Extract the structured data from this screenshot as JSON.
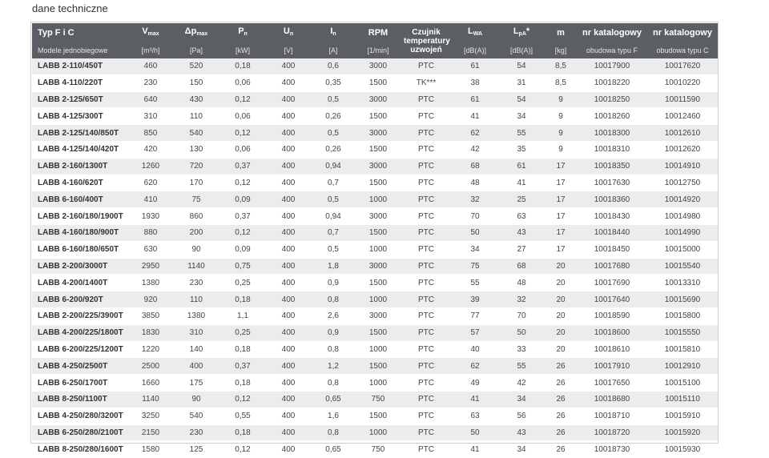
{
  "page": {
    "title": "dane techniczne"
  },
  "table": {
    "headers": {
      "model": "Typ F i C",
      "flow": "V",
      "flow_sub": "max",
      "pressure": "Δp",
      "pressure_sub": "max",
      "power": "P",
      "power_sub": "n",
      "voltage": "U",
      "voltage_sub": "n",
      "current": "I",
      "current_sub": "n",
      "rpm": "RPM",
      "sensor": "Czujnik temperatury uzwojeń",
      "lwa": "L",
      "lwa_sub": "WA",
      "lpa": "L",
      "lpa_sub": "pA",
      "lpa_suffix": "*",
      "mass": "m",
      "cat_f": "nr katalogowy",
      "cat_c": "nr katalogowy"
    },
    "units": {
      "model": "Modele jednobiegowe",
      "flow": "[m³/h]",
      "pressure": "[Pa]",
      "power": "[kW]",
      "voltage": "[V]",
      "current": "[A]",
      "rpm": "[1/min]",
      "sensor": "",
      "lwa": "[dB(A)]",
      "lpa": "[dB(A)]",
      "mass": "[kg]",
      "cat_f": "obudowa typu F",
      "cat_c": "obudowa typu C"
    },
    "rows": [
      [
        "LABB 2-110/450T",
        "460",
        "520",
        "0,18",
        "400",
        "0,6",
        "3000",
        "PTC",
        "61",
        "54",
        "8,5",
        "10017900",
        "10017620"
      ],
      [
        "LABB 4-110/220T",
        "230",
        "150",
        "0,06",
        "400",
        "0,35",
        "1500",
        "TK***",
        "38",
        "31",
        "8,5",
        "10018220",
        "10010220"
      ],
      [
        "LABB 2-125/650T",
        "640",
        "430",
        "0,12",
        "400",
        "0,5",
        "3000",
        "PTC",
        "61",
        "54",
        "9",
        "10018250",
        "10011590"
      ],
      [
        "LABB 4-125/300T",
        "310",
        "110",
        "0,06",
        "400",
        "0,26",
        "1500",
        "PTC",
        "41",
        "34",
        "9",
        "10018260",
        "10012460"
      ],
      [
        "LABB 2-125/140/850T",
        "850",
        "540",
        "0,12",
        "400",
        "0,5",
        "3000",
        "PTC",
        "62",
        "55",
        "9",
        "10018300",
        "10012610"
      ],
      [
        "LABB 4-125/140/420T",
        "420",
        "130",
        "0,06",
        "400",
        "0,26",
        "1500",
        "PTC",
        "42",
        "35",
        "9",
        "10018310",
        "10012620"
      ],
      [
        "LABB 2-160/1300T",
        "1260",
        "720",
        "0,37",
        "400",
        "0,94",
        "3000",
        "PTC",
        "68",
        "61",
        "17",
        "10018350",
        "10014910"
      ],
      [
        "LABB 4-160/620T",
        "620",
        "170",
        "0,12",
        "400",
        "0,7",
        "1500",
        "PTC",
        "48",
        "41",
        "17",
        "10017630",
        "10012750"
      ],
      [
        "LABB 6-160/400T",
        "410",
        "75",
        "0,09",
        "400",
        "0,5",
        "1000",
        "PTC",
        "32",
        "25",
        "17",
        "10018360",
        "10014920"
      ],
      [
        "LABB 2-160/180/1900T",
        "1930",
        "860",
        "0,37",
        "400",
        "0,94",
        "3000",
        "PTC",
        "70",
        "63",
        "17",
        "10018430",
        "10014980"
      ],
      [
        "LABB 4-160/180/900T",
        "880",
        "200",
        "0,12",
        "400",
        "0,7",
        "1500",
        "PTC",
        "50",
        "43",
        "17",
        "10018440",
        "10014990"
      ],
      [
        "LABB 6-160/180/650T",
        "630",
        "90",
        "0,09",
        "400",
        "0,5",
        "1000",
        "PTC",
        "34",
        "27",
        "17",
        "10018450",
        "10015000"
      ],
      [
        "LABB 2-200/3000T",
        "2950",
        "1140",
        "0,75",
        "400",
        "1,8",
        "3000",
        "PTC",
        "75",
        "68",
        "20",
        "10017680",
        "10015540"
      ],
      [
        "LABB 4-200/1400T",
        "1380",
        "230",
        "0,25",
        "400",
        "0,9",
        "1500",
        "PTC",
        "55",
        "48",
        "20",
        "10017690",
        "10013310"
      ],
      [
        "LABB 6-200/920T",
        "920",
        "110",
        "0,18",
        "400",
        "0,8",
        "1000",
        "PTC",
        "39",
        "32",
        "20",
        "10017640",
        "10015690"
      ],
      [
        "LABB 2-200/225/3900T",
        "3850",
        "1380",
        "1,1",
        "400",
        "2,6",
        "3000",
        "PTC",
        "77",
        "70",
        "20",
        "10018590",
        "10015800"
      ],
      [
        "LABB 4-200/225/1800T",
        "1830",
        "310",
        "0,25",
        "400",
        "0,9",
        "1500",
        "PTC",
        "57",
        "50",
        "20",
        "10018600",
        "10015550"
      ],
      [
        "LABB 6-200/225/1200T",
        "1220",
        "140",
        "0,18",
        "400",
        "0,8",
        "1000",
        "PTC",
        "40",
        "33",
        "20",
        "10018610",
        "10015810"
      ],
      [
        "LABB 4-250/2500T",
        "2500",
        "400",
        "0,37",
        "400",
        "1,2",
        "1500",
        "PTC",
        "62",
        "55",
        "26",
        "10017910",
        "10012910"
      ],
      [
        "LABB 6-250/1700T",
        "1660",
        "175",
        "0,18",
        "400",
        "0,8",
        "1000",
        "PTC",
        "49",
        "42",
        "26",
        "10017650",
        "10015100"
      ],
      [
        "LABB 8-250/1100T",
        "1140",
        "90",
        "0,12",
        "400",
        "0,65",
        "750",
        "PTC",
        "41",
        "34",
        "26",
        "10018680",
        "10015110"
      ],
      [
        "LABB 4-250/280/3200T",
        "3250",
        "540",
        "0,55",
        "400",
        "1,6",
        "1500",
        "PTC",
        "63",
        "56",
        "26",
        "10018710",
        "10015910"
      ],
      [
        "LABB 6-250/280/2100T",
        "2150",
        "230",
        "0,18",
        "400",
        "0,8",
        "1000",
        "PTC",
        "50",
        "43",
        "26",
        "10018720",
        "10015920"
      ],
      [
        "LABB 8-250/280/1600T",
        "1580",
        "125",
        "0,12",
        "400",
        "0,65",
        "750",
        "PTC",
        "41",
        "34",
        "26",
        "10018730",
        "10015930"
      ]
    ]
  }
}
